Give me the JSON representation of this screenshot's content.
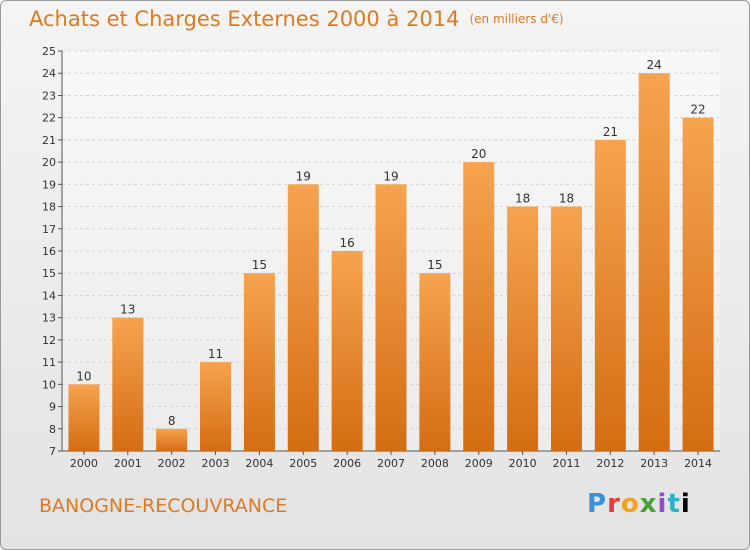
{
  "header": {
    "title": "Achats et Charges Externes 2000 à 2014",
    "unit": "(en milliers d'€)"
  },
  "footer": {
    "location": "BANOGNE-RECOUVRANCE",
    "brand": "Proxiti"
  },
  "colors": {
    "title": "#e07a1f",
    "bar_top": "#f6a350",
    "bar_bottom": "#d46d12"
  },
  "chart_data": {
    "type": "bar",
    "title": "Achats et Charges Externes 2000 à 2014",
    "subtitle": "(en milliers d'€)",
    "categories": [
      "2000",
      "2001",
      "2002",
      "2003",
      "2004",
      "2005",
      "2006",
      "2007",
      "2008",
      "2009",
      "2010",
      "2011",
      "2012",
      "2013",
      "2014"
    ],
    "values": [
      10,
      13,
      8,
      11,
      15,
      19,
      16,
      19,
      15,
      20,
      18,
      18,
      21,
      24,
      22
    ],
    "xlabel": "",
    "ylabel": "",
    "ylim": [
      7,
      25
    ],
    "yticks": [
      7,
      8,
      9,
      10,
      11,
      12,
      13,
      14,
      15,
      16,
      17,
      18,
      19,
      20,
      21,
      22,
      23,
      24,
      25
    ],
    "grid": true,
    "legend": "none",
    "data_labels": true
  }
}
